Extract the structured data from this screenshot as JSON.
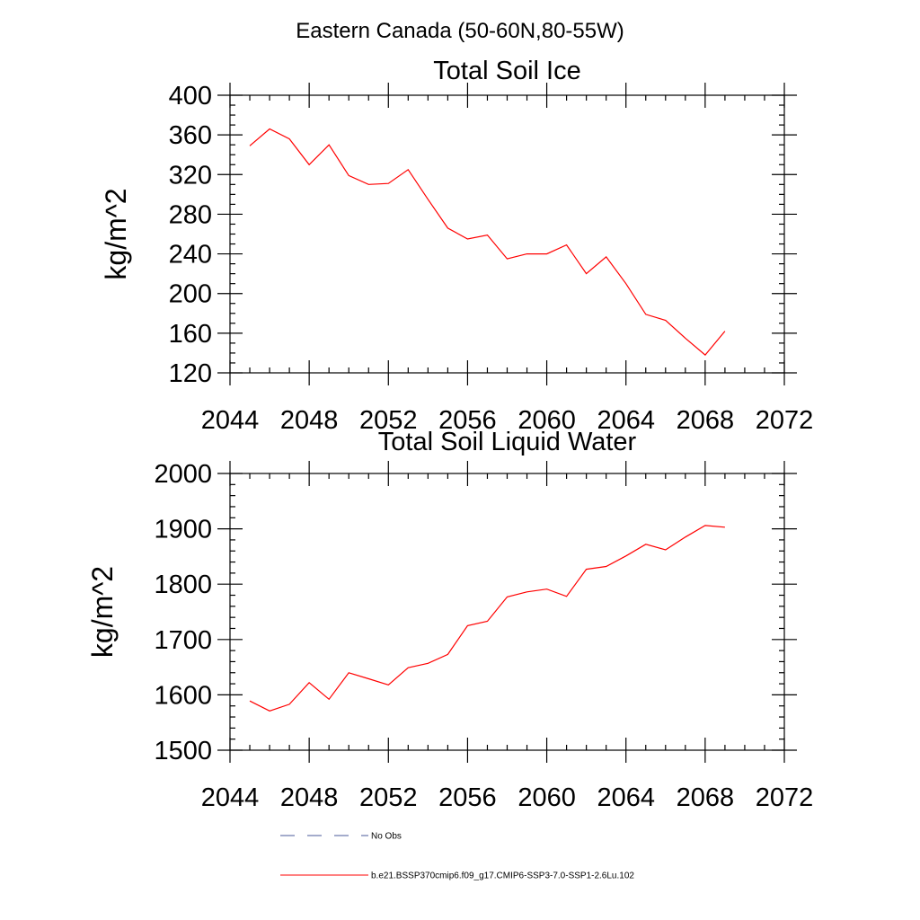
{
  "suptitle": "Eastern Canada (50-60N,80-55W)",
  "legend": [
    {
      "label": "No Obs",
      "color": "#4a5a9a",
      "dash": true
    },
    {
      "label": "b.e21.BSSP370cmip6.f09_g17.CMIP6-SSP3-7.0-SSP1-2.6Lu.102",
      "color": "#ff0000",
      "dash": false
    }
  ],
  "chart_data": [
    {
      "type": "line",
      "title": "Total Soil Ice",
      "xlabel": "",
      "ylabel": "kg/m^2",
      "xlim": [
        2044,
        2072
      ],
      "ylim": [
        120,
        400
      ],
      "xticks": [
        2044,
        2048,
        2052,
        2056,
        2060,
        2064,
        2068,
        2072
      ],
      "yticks": [
        120,
        160,
        200,
        240,
        280,
        320,
        360,
        400
      ],
      "x_minor_step": 1,
      "y_minor_step": 10,
      "series": [
        {
          "color": "#ff0000",
          "x": [
            2045,
            2046,
            2047,
            2048,
            2049,
            2050,
            2051,
            2052,
            2053,
            2054,
            2055,
            2056,
            2057,
            2058,
            2059,
            2060,
            2061,
            2062,
            2063,
            2064,
            2065,
            2066,
            2067,
            2068,
            2069
          ],
          "y": [
            349,
            366,
            356,
            330,
            350,
            319,
            310,
            311,
            325,
            295,
            266,
            255,
            259,
            235,
            240,
            240,
            249,
            220,
            237,
            210,
            179,
            173,
            155,
            138,
            162
          ]
        }
      ]
    },
    {
      "type": "line",
      "title": "Total Soil Liquid Water",
      "xlabel": "",
      "ylabel": "kg/m^2",
      "xlim": [
        2044,
        2072
      ],
      "ylim": [
        1500,
        2000
      ],
      "xticks": [
        2044,
        2048,
        2052,
        2056,
        2060,
        2064,
        2068,
        2072
      ],
      "yticks": [
        1500,
        1600,
        1700,
        1800,
        1900,
        2000
      ],
      "x_minor_step": 1,
      "y_minor_step": 20,
      "series": [
        {
          "color": "#ff0000",
          "x": [
            2045,
            2046,
            2047,
            2048,
            2049,
            2050,
            2051,
            2052,
            2053,
            2054,
            2055,
            2056,
            2057,
            2058,
            2059,
            2060,
            2061,
            2062,
            2063,
            2064,
            2065,
            2066,
            2067,
            2068,
            2069
          ],
          "y": [
            1589,
            1571,
            1583,
            1622,
            1592,
            1640,
            1629,
            1618,
            1649,
            1657,
            1673,
            1725,
            1733,
            1777,
            1786,
            1791,
            1778,
            1827,
            1832,
            1851,
            1872,
            1862,
            1885,
            1906,
            1903
          ]
        }
      ]
    }
  ]
}
